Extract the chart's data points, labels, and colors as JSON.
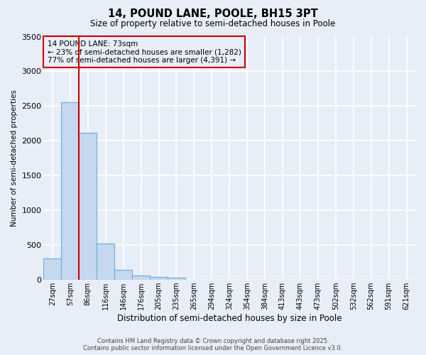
{
  "title1": "14, POUND LANE, POOLE, BH15 3PT",
  "title2": "Size of property relative to semi-detached houses in Poole",
  "xlabel": "Distribution of semi-detached houses by size in Poole",
  "ylabel": "Number of semi-detached properties",
  "categories": [
    "27sqm",
    "57sqm",
    "86sqm",
    "116sqm",
    "146sqm",
    "176sqm",
    "205sqm",
    "235sqm",
    "265sqm",
    "294sqm",
    "324sqm",
    "354sqm",
    "384sqm",
    "413sqm",
    "443sqm",
    "473sqm",
    "502sqm",
    "532sqm",
    "562sqm",
    "591sqm",
    "621sqm"
  ],
  "values": [
    310,
    2560,
    2120,
    520,
    150,
    65,
    40,
    30,
    0,
    0,
    0,
    0,
    0,
    0,
    0,
    0,
    0,
    0,
    0,
    0,
    0
  ],
  "bar_color": "#c5d8f0",
  "bar_edge_color": "#6baed6",
  "background_color": "#e8eef8",
  "grid_color": "#ffffff",
  "vline_x": 1.5,
  "vline_color": "#cc0000",
  "annotation_title": "14 POUND LANE: 73sqm",
  "annotation_line1": "← 23% of semi-detached houses are smaller (1,282)",
  "annotation_line2": "77% of semi-detached houses are larger (4,391) →",
  "annotation_box_color": "#cc0000",
  "ylim": [
    0,
    3500
  ],
  "yticks": [
    0,
    500,
    1000,
    1500,
    2000,
    2500,
    3000,
    3500
  ],
  "footer1": "Contains HM Land Registry data © Crown copyright and database right 2025.",
  "footer2": "Contains public sector information licensed under the Open Government Licence v3.0."
}
